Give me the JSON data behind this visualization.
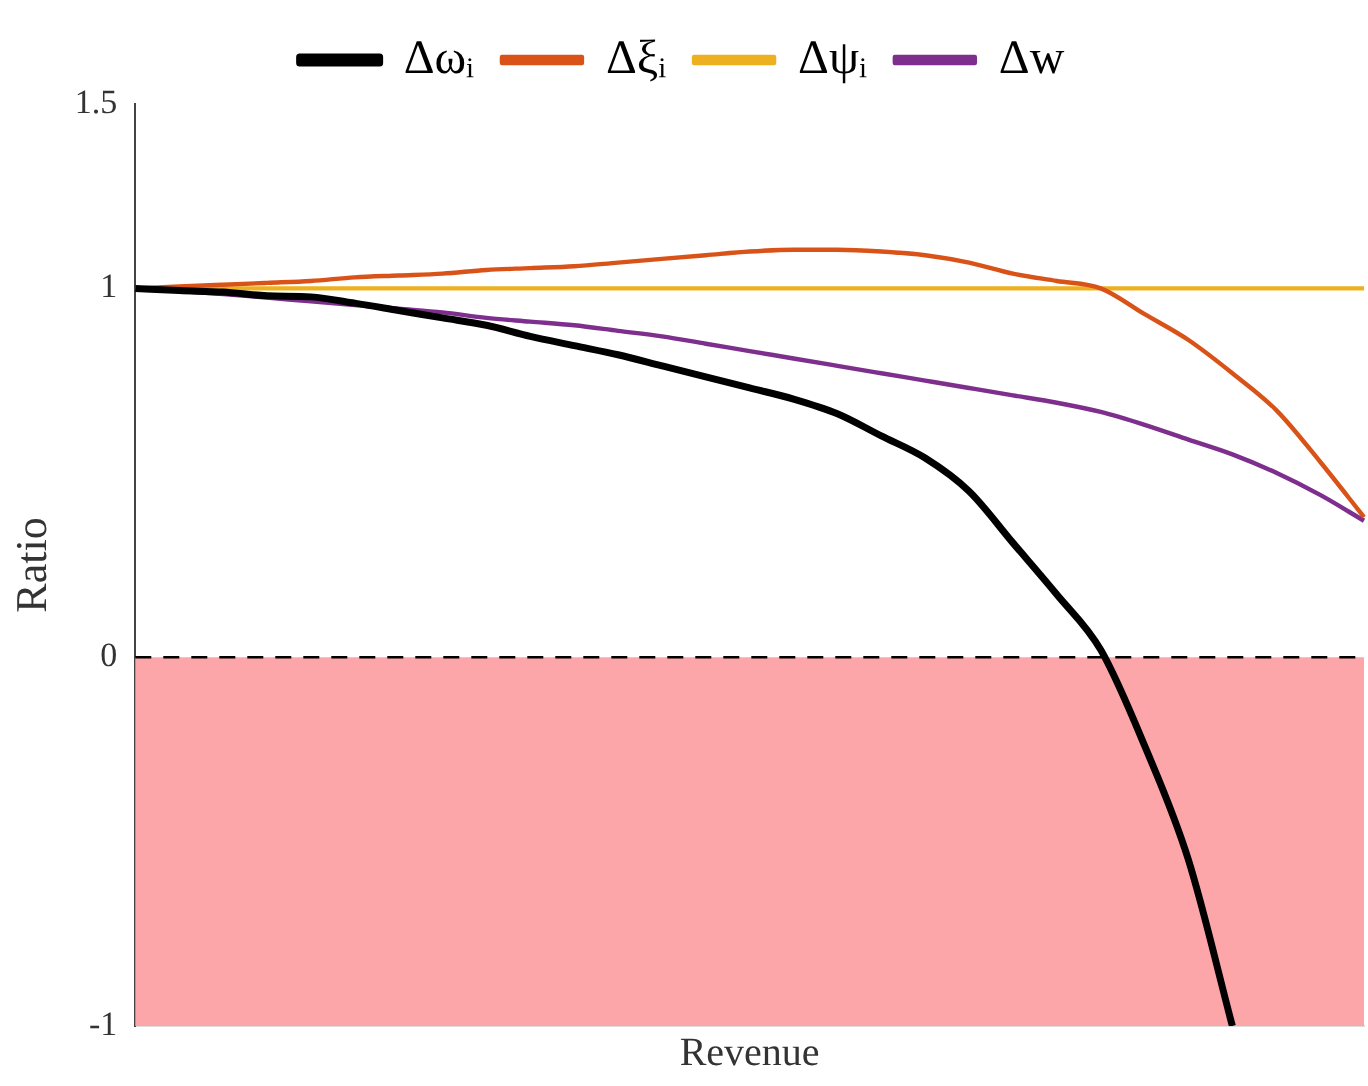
{
  "chart_data": {
    "type": "line",
    "xlabel": "Revenue",
    "ylabel": "Ratio",
    "categories": [
      null,
      null,
      null,
      null,
      null,
      null,
      null,
      null,
      null,
      null,
      null,
      null,
      null,
      null,
      null,
      null,
      null,
      null,
      null,
      null,
      null,
      null,
      null,
      null,
      null,
      null,
      null,
      null,
      null
    ],
    "series": [
      {
        "name": "Δωᵢ",
        "color": "#000000",
        "values": [
          1.0,
          0.994,
          0.99,
          0.98,
          0.977,
          0.96,
          0.94,
          0.92,
          0.9,
          0.87,
          0.845,
          0.82,
          0.79,
          0.76,
          0.73,
          0.7,
          0.66,
          0.6,
          0.54,
          0.45,
          0.31,
          0.17,
          0.02,
          -0.24,
          -0.55,
          -1.0,
          null,
          null,
          null
        ]
      },
      {
        "name": "Δξᵢ",
        "color": "#d95319",
        "values": [
          1.0,
          1.005,
          1.01,
          1.015,
          1.02,
          1.03,
          1.035,
          1.04,
          1.05,
          1.055,
          1.06,
          1.07,
          1.08,
          1.09,
          1.1,
          1.105,
          1.105,
          1.1,
          1.09,
          1.07,
          1.04,
          1.02,
          1.0,
          0.93,
          0.86,
          0.77,
          0.67,
          0.53,
          0.38
        ]
      },
      {
        "name": "Δψᵢ",
        "color": "#edb120",
        "values": [
          1,
          1,
          1,
          1,
          1,
          1,
          1,
          1,
          1,
          1,
          1,
          1,
          1,
          1,
          1,
          1,
          1,
          1,
          1,
          1,
          1,
          1,
          1,
          1,
          1,
          1,
          1,
          1,
          1
        ]
      },
      {
        "name": "Δw",
        "color": "#7e2f8e",
        "values": [
          1.0,
          0.993,
          0.985,
          0.975,
          0.965,
          0.955,
          0.945,
          0.935,
          0.92,
          0.91,
          0.9,
          0.885,
          0.87,
          0.85,
          0.83,
          0.81,
          0.79,
          0.77,
          0.75,
          0.73,
          0.71,
          0.69,
          0.665,
          0.63,
          0.59,
          0.55,
          0.5,
          0.44,
          0.37
        ]
      }
    ],
    "ylim": [
      -1,
      1.5
    ],
    "yticks": [
      -1,
      0,
      1,
      1.5
    ],
    "tick_labels": "y",
    "grid": false,
    "legend": "top",
    "marker": "none",
    "line_style": "solid",
    "bands": [
      {
        "axis": "y",
        "from": -1,
        "to": 0,
        "color": "#fca6a9"
      }
    ],
    "ref_lines": [
      {
        "axis": "y",
        "value": 0,
        "color": "#000000",
        "line_style": "dashed"
      }
    ]
  }
}
